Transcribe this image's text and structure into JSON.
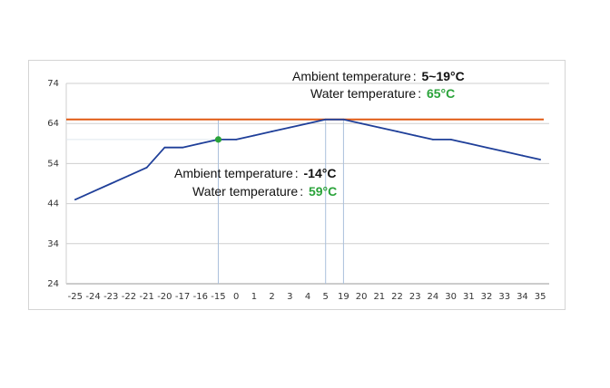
{
  "chart_data": {
    "type": "line",
    "categories": [
      "-25",
      "-24",
      "-23",
      "-22",
      "-21",
      "-20",
      "-17",
      "-16",
      "-15",
      "0",
      "1",
      "2",
      "3",
      "4",
      "5",
      "19",
      "20",
      "21",
      "22",
      "23",
      "24",
      "30",
      "31",
      "32",
      "33",
      "34",
      "35"
    ],
    "yticks": [
      "74",
      "64",
      "54",
      "44",
      "34",
      "24"
    ],
    "ylim": [
      24,
      74
    ],
    "series": [
      {
        "values": [
          45,
          47,
          49,
          51,
          53,
          58,
          58,
          59,
          60,
          60,
          61,
          62,
          63,
          64,
          65,
          65,
          64,
          63,
          62,
          61,
          60,
          60,
          59,
          58,
          57,
          56,
          55
        ],
        "color": "#1f3f99"
      }
    ],
    "reference_line": {
      "value": 65,
      "color": "#e05a14"
    },
    "highlight_point": {
      "category": "-15",
      "value": 60,
      "color": "#2aa33a"
    },
    "vertical_markers": [
      "-15",
      "5",
      "19"
    ],
    "grid": true,
    "annotations": {
      "top": {
        "ambient_label": "Ambient temperature",
        "ambient_value": "5~19°C",
        "water_label": "Water temperature",
        "water_value": "65°C",
        "sep": ":"
      },
      "middle": {
        "ambient_label": "Ambient temperature",
        "ambient_value": "-14°C",
        "water_label": "Water temperature",
        "water_value": "59°C",
        "sep": ":"
      },
      "value_color_green": "#2aa33a"
    }
  }
}
